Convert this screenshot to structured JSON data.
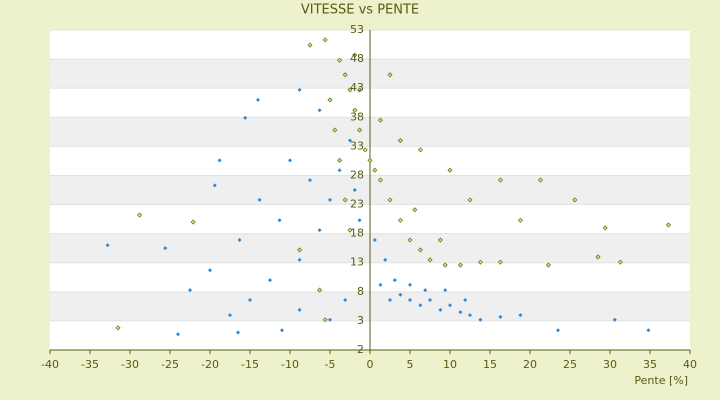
{
  "chart_data": {
    "type": "scatter",
    "title": "VITESSE vs PENTE",
    "x_label": "Pente [%]",
    "xlim": [
      -40,
      40
    ],
    "xticks": [
      -40,
      -35,
      -30,
      -25,
      -20,
      -15,
      -10,
      -5,
      0,
      5,
      10,
      15,
      20,
      25,
      30,
      35,
      40
    ],
    "ylim": [
      -2,
      53
    ],
    "yticks": [
      -2,
      3,
      8,
      13,
      18,
      23,
      28,
      33,
      38,
      43,
      48,
      53
    ],
    "grid": true,
    "series": [
      {
        "color": "#2e86d6",
        "x": [
          -14,
          -15.6,
          -18.8,
          -19.4,
          -25.6,
          -32.8,
          -24,
          -16.5,
          -11,
          -8.8,
          -6.3,
          -10,
          -13.8,
          -16.3,
          -20,
          -22.5,
          -12.5,
          -8.8,
          -6.3,
          -5,
          -3.8,
          -2.5,
          -1.9,
          -1.3,
          0.6,
          1.9,
          3.1,
          3.8,
          5,
          6.3,
          7.5,
          8.8,
          10,
          11.3,
          12.5,
          13.8,
          16.3,
          18.8,
          23.5,
          30.6,
          34.8,
          5,
          6.9,
          2.5,
          1.3,
          9.4,
          11.9,
          -15,
          -17.5,
          -8.8,
          -5,
          -3.1,
          -11.3,
          -7.5
        ],
        "values": [
          41,
          37.9,
          30.6,
          26.3,
          15.5,
          16,
          0.7,
          1,
          1.4,
          42.7,
          39.2,
          30.6,
          23.8,
          16.9,
          11.7,
          8.3,
          10,
          13.5,
          18.6,
          23.8,
          28.9,
          34,
          25.5,
          20.3,
          16.9,
          13.5,
          10,
          7.5,
          6.6,
          5.7,
          6.6,
          4.9,
          5.7,
          4.5,
          4,
          3.2,
          3.7,
          4,
          1.4,
          3.2,
          1.4,
          9.2,
          8.3,
          6.6,
          9.2,
          8.3,
          6.6,
          6.6,
          4,
          4.9,
          3.2,
          6.6,
          20.3,
          27.2
        ]
      },
      {
        "color": "#6b7a16",
        "x": [
          -7.5,
          -5.6,
          -3.8,
          -3.1,
          -2.5,
          -1.9,
          -1.3,
          -0.6,
          0,
          0.6,
          1.3,
          2.5,
          3.8,
          5,
          6.3,
          7.5,
          9.4,
          11.3,
          13.8,
          16.3,
          18.8,
          21.3,
          25.6,
          29.4,
          37.3,
          31.3,
          28.5,
          22.3,
          -28.8,
          -31.5,
          -22.1,
          -5,
          -4.4,
          -3.8,
          -3.1,
          -2.5,
          1.3,
          2.5,
          3.8,
          6.3,
          10,
          12.5,
          16.3,
          -1.3,
          -1.9,
          -5.6,
          -8.8,
          -6.3,
          8.8,
          5.6
        ],
        "values": [
          50.4,
          51.3,
          47.8,
          45.3,
          42.7,
          39.2,
          35.8,
          32.4,
          30.6,
          28.9,
          27.2,
          23.8,
          20.3,
          16.9,
          15.2,
          13.5,
          12.6,
          12.6,
          13.1,
          13.1,
          20.3,
          27.2,
          23.8,
          19,
          19.5,
          13.1,
          14,
          12.6,
          21.2,
          1.8,
          20,
          41,
          35.8,
          30.6,
          23.8,
          18.6,
          37.5,
          45.3,
          34,
          32.4,
          28.9,
          23.8,
          27.2,
          42.7,
          48.7,
          3.2,
          15.2,
          8.3,
          16.9,
          22.1
        ]
      }
    ]
  }
}
